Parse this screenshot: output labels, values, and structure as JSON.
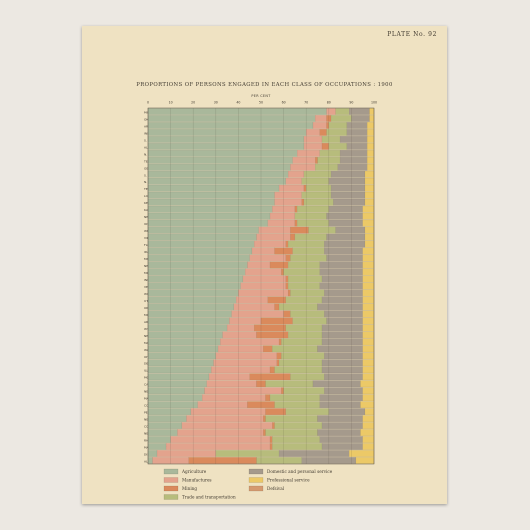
{
  "plate_label": "PLATE No. 92",
  "chart_data": {
    "type": "bar",
    "orientation": "horizontal",
    "stacked": true,
    "title": "PROPORTIONS OF PERSONS ENGAGED IN EACH CLASS OF OCCUPATIONS : 1900",
    "xlabel": "PER CENT",
    "xlim": [
      0,
      100
    ],
    "x_ticks": [
      "0",
      "10",
      "20",
      "30",
      "40",
      "50",
      "60",
      "70",
      "80",
      "90",
      "100"
    ],
    "grid": true,
    "legend_position": "bottom",
    "colors": {
      "Agriculture": "#a9b89b",
      "Manufactures": "#e3a38d",
      "Mining": "#da8a5c",
      "Trade and transportation": "#b7bc7c",
      "Domestic and personal service": "#a59a8c",
      "Professional service": "#ecc967",
      "Defsival": "#d59a6f"
    },
    "categories": [
      "MISSISSIPPI",
      "OKLAHOMA",
      "ARKANSAS",
      "INDIAN TER.",
      "S. CAROLINA",
      "ALABAMA",
      "N. CAROLINA",
      "TEXAS",
      "GEORGIA",
      "S. DAKOTA",
      "N. DAKOTA",
      "TENNESSEE",
      "LOUISIANA",
      "KENTUCKY",
      "KANSAS",
      "NEBRASKA",
      "IOWA",
      "WEST VIRGINIA",
      "VIRGINIA",
      "FLORIDA",
      "IDAHO",
      "MISSOURI",
      "NEW MEXICO",
      "MINNESOTA",
      "INDIANA",
      "VERMONT",
      "WISCONSIN",
      "UTAH",
      "OREGON",
      "MICHIGAN",
      "ARIZONA",
      "WYOMING",
      "NEVADA",
      "MAINE",
      "WASHINGTON",
      "OHIO",
      "DELAWARE",
      "ILLINOIS",
      "MONTANA",
      "CALIFORNIA",
      "NEW HAMPSHIRE",
      "MARYLAND",
      "COLORADO",
      "PENNSYLVANIA",
      "NEW YORK",
      "CONNECTICUT",
      "NEW JERSEY",
      "RHODE ISLAND",
      "MASSACHUSETTS",
      "DIST. OF COLUMBIA",
      "ALASKA"
    ],
    "series": [
      {
        "name": "Agriculture",
        "values": [
          79,
          74,
          73,
          70,
          69,
          69,
          66,
          64,
          63,
          62,
          61,
          58,
          56,
          56,
          55,
          54,
          53,
          49,
          48,
          47,
          46,
          45,
          44,
          43,
          42,
          41,
          40,
          39,
          38,
          37,
          36,
          35,
          33,
          32,
          31,
          30,
          29,
          28,
          27,
          26,
          25,
          24,
          22,
          19,
          17,
          15,
          13,
          10,
          8,
          4,
          2
        ]
      },
      {
        "name": "Manufactures",
        "values": [
          4,
          5,
          6,
          6,
          8,
          8,
          10,
          10,
          11,
          7,
          7,
          11,
          12,
          12,
          10,
          11,
          12,
          14,
          15,
          14,
          10,
          16,
          10,
          16,
          19,
          20,
          22,
          14,
          18,
          23,
          14,
          12,
          15,
          26,
          20,
          27,
          28,
          26,
          18,
          22,
          34,
          28,
          22,
          33,
          34,
          40,
          38,
          44,
          46,
          26,
          16
        ]
      },
      {
        "name": "Mining",
        "values": [
          0,
          2,
          1,
          3,
          0,
          3,
          0,
          1,
          0,
          0,
          0,
          1,
          0,
          1,
          1,
          0,
          1,
          8,
          2,
          1,
          8,
          2,
          8,
          1,
          1,
          1,
          1,
          8,
          2,
          3,
          14,
          14,
          14,
          1,
          4,
          2,
          1,
          2,
          18,
          4,
          1,
          2,
          12,
          9,
          1,
          1,
          1,
          1,
          1,
          0,
          30
        ]
      },
      {
        "name": "Trade and transportation",
        "values": [
          6,
          9,
          8,
          9,
          8,
          8,
          9,
          10,
          10,
          12,
          12,
          11,
          13,
          13,
          14,
          14,
          14,
          12,
          14,
          16,
          14,
          16,
          14,
          16,
          15,
          14,
          15,
          16,
          17,
          15,
          15,
          16,
          15,
          18,
          20,
          19,
          19,
          21,
          15,
          21,
          18,
          22,
          20,
          19,
          23,
          21,
          23,
          21,
          22,
          28,
          20
        ]
      },
      {
        "name": "Domestic and personal service",
        "values": [
          9,
          8,
          9,
          9,
          12,
          9,
          12,
          12,
          13,
          15,
          16,
          15,
          15,
          14,
          15,
          16,
          15,
          13,
          17,
          18,
          17,
          16,
          19,
          19,
          18,
          19,
          17,
          18,
          20,
          17,
          16,
          18,
          18,
          18,
          20,
          17,
          18,
          18,
          17,
          21,
          17,
          19,
          18,
          16,
          20,
          18,
          19,
          19,
          18,
          31,
          24
        ]
      },
      {
        "name": "Professional service",
        "values": [
          2,
          2,
          3,
          3,
          3,
          3,
          3,
          3,
          3,
          4,
          4,
          4,
          4,
          4,
          5,
          5,
          5,
          4,
          4,
          4,
          5,
          5,
          5,
          5,
          5,
          5,
          5,
          5,
          5,
          5,
          5,
          5,
          5,
          5,
          5,
          5,
          5,
          5,
          5,
          6,
          5,
          5,
          6,
          4,
          5,
          5,
          6,
          5,
          5,
          11,
          8
        ]
      }
    ],
    "legend": [
      "Agriculture",
      "Manufactures",
      "Mining",
      "Trade and transportation",
      "Domestic and personal service",
      "Professional service",
      "Defsival"
    ]
  }
}
